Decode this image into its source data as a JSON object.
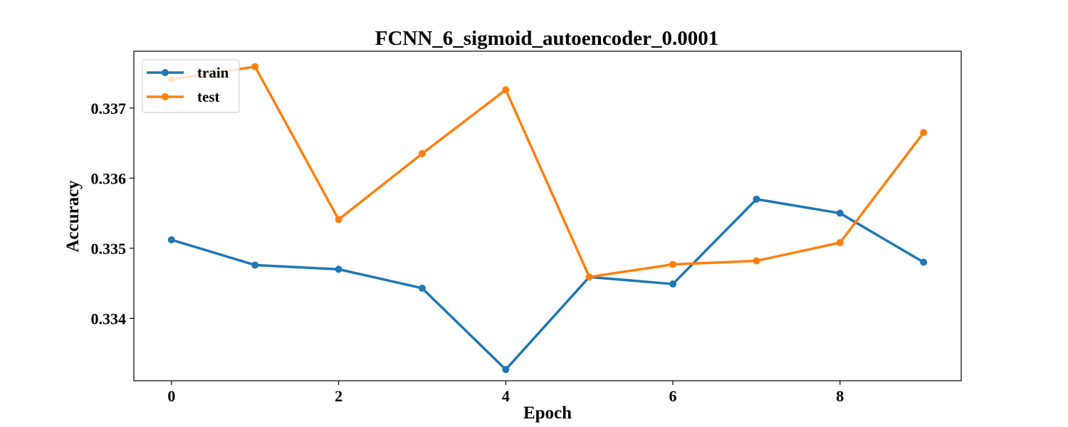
{
  "chart_data": {
    "type": "line",
    "title": "FCNN_6_sigmoid_autoencoder_0.0001",
    "xlabel": "Epoch",
    "ylabel": "Accuracy",
    "xlim": [
      -0.45,
      9.45
    ],
    "ylim": [
      0.33311,
      0.33781
    ],
    "xticks": [
      0,
      2,
      4,
      6,
      8
    ],
    "yticks": [
      0.334,
      0.335,
      0.336,
      0.337
    ],
    "xtick_labels": [
      "0",
      "2",
      "4",
      "6",
      "8"
    ],
    "ytick_labels": [
      "0.334",
      "0.335",
      "0.336",
      "0.337"
    ],
    "grid": false,
    "legend_position": "top-left",
    "x": [
      0,
      1,
      2,
      3,
      4,
      5,
      6,
      7,
      8,
      9
    ],
    "series": [
      {
        "name": "train",
        "color": "#1f77b4",
        "values": [
          0.33512,
          0.33476,
          0.3347,
          0.33443,
          0.33327,
          0.33459,
          0.33449,
          0.3357,
          0.3355,
          0.3348
        ]
      },
      {
        "name": "test",
        "color": "#ff7f0e",
        "values": [
          0.33741,
          0.33759,
          0.33541,
          0.33635,
          0.33726,
          0.33459,
          0.33477,
          0.33482,
          0.33508,
          0.33665
        ]
      }
    ]
  }
}
